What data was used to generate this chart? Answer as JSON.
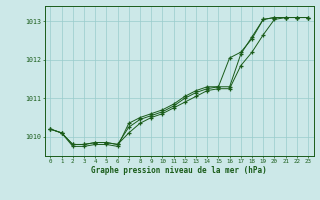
{
  "title": "Graphe pression niveau de la mer (hPa)",
  "bg_color": "#cce8e8",
  "grid_color": "#99cccc",
  "line_color": "#1a5c1a",
  "x_min": -0.5,
  "x_max": 23.5,
  "y_min": 1009.5,
  "y_max": 1013.4,
  "y_ticks": [
    1010,
    1011,
    1012,
    1013
  ],
  "x_ticks": [
    0,
    1,
    2,
    3,
    4,
    5,
    6,
    7,
    8,
    9,
    10,
    11,
    12,
    13,
    14,
    15,
    16,
    17,
    18,
    19,
    20,
    21,
    22,
    23
  ],
  "line1_x": [
    0,
    1,
    2,
    3,
    4,
    5,
    6,
    7,
    8,
    9,
    10,
    11,
    12,
    13,
    14,
    15,
    16,
    17,
    18,
    19,
    20,
    21,
    22,
    23
  ],
  "line1_y": [
    1010.2,
    1010.1,
    1009.8,
    1009.8,
    1009.85,
    1009.85,
    1009.8,
    1010.25,
    1010.45,
    1010.55,
    1010.65,
    1010.8,
    1011.0,
    1011.15,
    1011.25,
    1011.3,
    1011.3,
    1012.15,
    1012.6,
    1013.05,
    1013.1,
    1013.1,
    1013.1,
    1013.1
  ],
  "line2_x": [
    0,
    1,
    2,
    3,
    4,
    5,
    6,
    7,
    8,
    9,
    10,
    11,
    12,
    13,
    14,
    15,
    16,
    17,
    18,
    19,
    20,
    21,
    22,
    23
  ],
  "line2_y": [
    1010.2,
    1010.1,
    1009.8,
    1009.8,
    1009.85,
    1009.85,
    1009.8,
    1010.1,
    1010.35,
    1010.5,
    1010.6,
    1010.75,
    1010.9,
    1011.05,
    1011.2,
    1011.25,
    1011.25,
    1011.85,
    1012.2,
    1012.65,
    1013.05,
    1013.1,
    1013.1,
    1013.1
  ],
  "line3_x": [
    0,
    1,
    2,
    3,
    4,
    5,
    6,
    7,
    8,
    9,
    10,
    11,
    12,
    13,
    14,
    15,
    16,
    17,
    18,
    19,
    20,
    21,
    22,
    23
  ],
  "line3_y": [
    1010.2,
    1010.1,
    1009.75,
    1009.75,
    1009.8,
    1009.8,
    1009.75,
    1010.35,
    1010.5,
    1010.6,
    1010.7,
    1010.85,
    1011.05,
    1011.2,
    1011.3,
    1011.3,
    1012.05,
    1012.2,
    1012.55,
    1013.05,
    1013.1,
    1013.1,
    1013.1,
    1013.1
  ]
}
